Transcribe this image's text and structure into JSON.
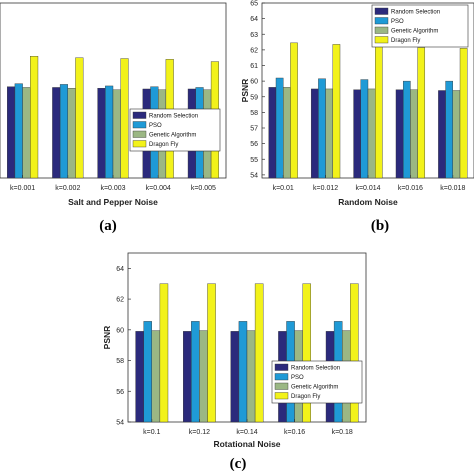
{
  "colors": {
    "Random Selection": "#2b2a7c",
    "PSO": "#1f9ad6",
    "Genetic Algorithm": "#9bb784",
    "Dragon Fly": "#f2f21a"
  },
  "chart_data": [
    {
      "type": "bar",
      "panel_label": "(a)",
      "xlabel": "Salt and Pepper Noise",
      "ylabel": "",
      "categories": [
        "k=0.001",
        "k=0.002",
        "k=0.003",
        "k=0.004",
        "k=0.005"
      ],
      "series": [
        {
          "name": "Random Selection",
          "values": [
            59.5,
            59.45,
            59.4,
            59.35,
            59.35
          ]
        },
        {
          "name": "PSO",
          "values": [
            59.7,
            59.65,
            59.55,
            59.5,
            59.45
          ]
        },
        {
          "name": "Genetic Algorithm",
          "values": [
            59.45,
            59.4,
            59.3,
            59.3,
            59.3
          ]
        },
        {
          "name": "Dragon Fly",
          "values": [
            61.5,
            61.4,
            61.35,
            61.3,
            61.15
          ]
        }
      ],
      "ylim": [
        53.5,
        65
      ],
      "yticks": [],
      "legend": "center-right",
      "grid": false
    },
    {
      "type": "bar",
      "panel_label": "(b)",
      "xlabel": "Random Noise",
      "ylabel": "PSNR",
      "categories": [
        "k=0.01",
        "k=0.012",
        "k=0.014",
        "k=0.016",
        "k=0.018"
      ],
      "series": [
        {
          "name": "Random Selection",
          "values": [
            59.6,
            59.5,
            59.45,
            59.45,
            59.4
          ]
        },
        {
          "name": "PSO",
          "values": [
            60.2,
            60.15,
            60.1,
            60.0,
            60.0
          ]
        },
        {
          "name": "Genetic Algorithm",
          "values": [
            59.6,
            59.5,
            59.5,
            59.45,
            59.4
          ]
        },
        {
          "name": "Dragon Fly",
          "values": [
            62.45,
            62.35,
            62.25,
            62.15,
            62.1
          ]
        }
      ],
      "ylim": [
        53.8,
        65
      ],
      "yticks": [
        "54",
        "55",
        "56",
        "57",
        "58",
        "59",
        "60",
        "61",
        "62",
        "63",
        "64",
        "65"
      ],
      "legend": "top-right",
      "grid": false
    },
    {
      "type": "bar",
      "panel_label": "(c)",
      "xlabel": "Rotational Noise",
      "ylabel": "PSNR",
      "categories": [
        "k=0.1",
        "k=0.12",
        "k=0.14",
        "k=0.16",
        "k=0.18"
      ],
      "series": [
        {
          "name": "Random Selection",
          "values": [
            59.9,
            59.9,
            59.9,
            59.9,
            59.9
          ]
        },
        {
          "name": "PSO",
          "values": [
            60.55,
            60.55,
            60.55,
            60.55,
            60.55
          ]
        },
        {
          "name": "Genetic Algorithm",
          "values": [
            59.95,
            59.95,
            59.95,
            59.95,
            59.95
          ]
        },
        {
          "name": "Dragon Fly",
          "values": [
            63.0,
            63.0,
            63.0,
            63.0,
            63.0
          ]
        }
      ],
      "ylim": [
        54,
        65
      ],
      "yticks": [
        "54",
        "56",
        "58",
        "60",
        "62",
        "64"
      ],
      "legend": "bottom-right",
      "grid": false
    }
  ]
}
